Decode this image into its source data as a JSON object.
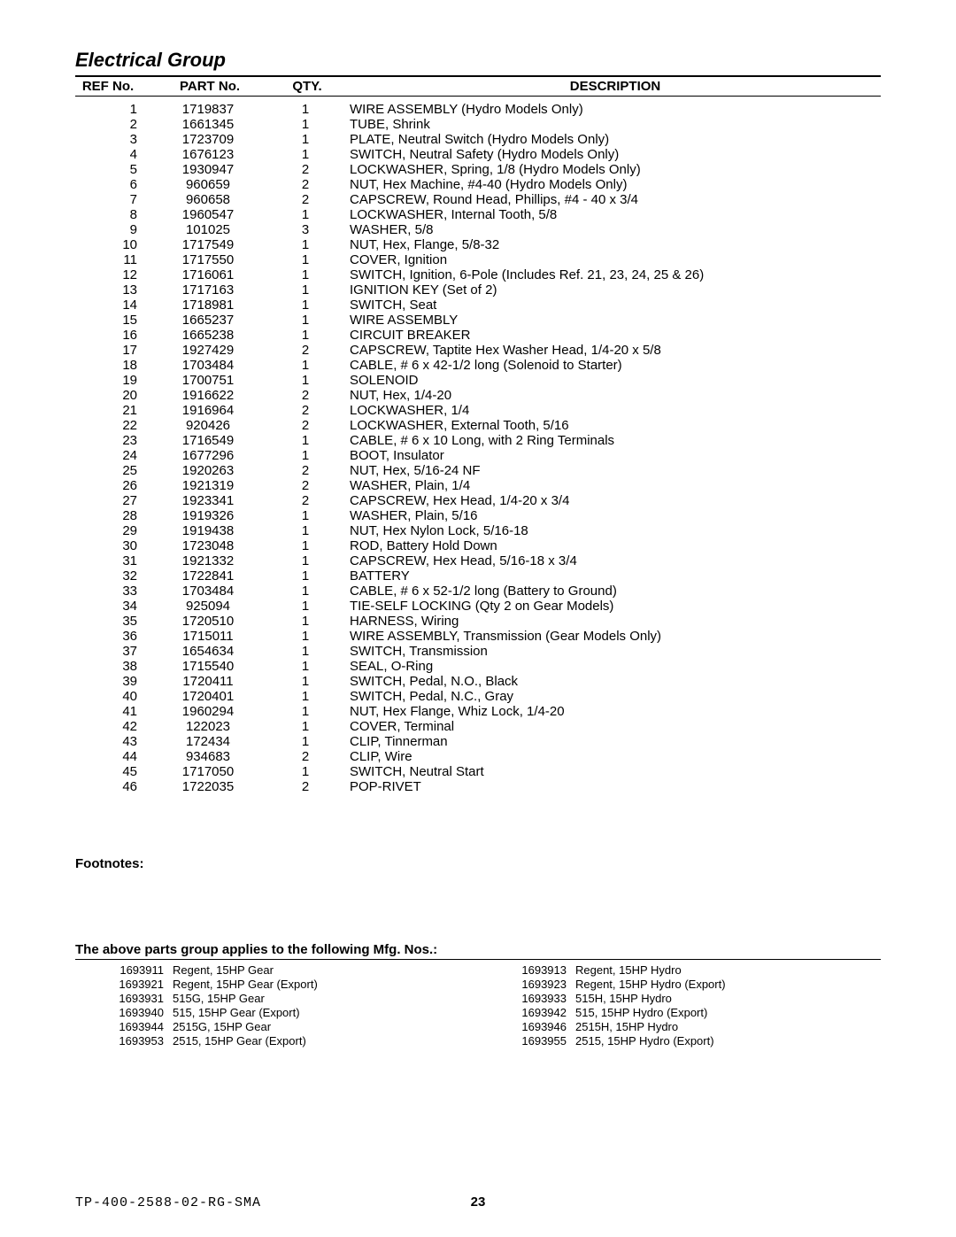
{
  "title": "Electrical Group",
  "headers": {
    "ref": "REF No.",
    "part": "PART No.",
    "qty": "QTY.",
    "desc": "DESCRIPTION"
  },
  "rows": [
    {
      "ref": "1",
      "part": "1719837",
      "qty": "1",
      "desc": "WIRE ASSEMBLY (Hydro Models Only)"
    },
    {
      "ref": "2",
      "part": "1661345",
      "qty": "1",
      "desc": "TUBE, Shrink"
    },
    {
      "ref": "3",
      "part": "1723709",
      "qty": "1",
      "desc": "PLATE, Neutral Switch   (Hydro Models Only)"
    },
    {
      "ref": "4",
      "part": "1676123",
      "qty": "1",
      "desc": "SWITCH, Neutral Safety (Hydro Models Only)"
    },
    {
      "ref": "5",
      "part": "1930947",
      "qty": "2",
      "desc": "LOCKWASHER, Spring, 1/8  (Hydro Models Only)"
    },
    {
      "ref": "6",
      "part": "960659",
      "qty": "2",
      "desc": "NUT, Hex Machine, #4-40 (Hydro Models Only)"
    },
    {
      "ref": "7",
      "part": "960658",
      "qty": "2",
      "desc": "CAPSCREW, Round Head, Phillips, #4 - 40 x 3/4"
    },
    {
      "ref": "8",
      "part": "1960547",
      "qty": "1",
      "desc": "LOCKWASHER, Internal Tooth, 5/8"
    },
    {
      "ref": "9",
      "part": "101025",
      "qty": "3",
      "desc": "WASHER, 5/8"
    },
    {
      "ref": "10",
      "part": "1717549",
      "qty": "1",
      "desc": "NUT, Hex, Flange, 5/8-32"
    },
    {
      "ref": "11",
      "part": "1717550",
      "qty": "1",
      "desc": "COVER, Ignition"
    },
    {
      "ref": "12",
      "part": "1716061",
      "qty": "1",
      "desc": "SWITCH, Ignition, 6-Pole (Includes Ref. 21, 23, 24, 25 & 26)"
    },
    {
      "ref": "13",
      "part": "1717163",
      "qty": "1",
      "desc": "IGNITION KEY (Set of 2)"
    },
    {
      "ref": "14",
      "part": "1718981",
      "qty": "1",
      "desc": "SWITCH, Seat"
    },
    {
      "ref": "15",
      "part": "1665237",
      "qty": "1",
      "desc": "WIRE ASSEMBLY"
    },
    {
      "ref": "16",
      "part": "1665238",
      "qty": "1",
      "desc": "CIRCUIT BREAKER"
    },
    {
      "ref": "17",
      "part": "1927429",
      "qty": "2",
      "desc": "CAPSCREW, Taptite Hex Washer Head, 1/4-20 x 5/8"
    },
    {
      "ref": "18",
      "part": "1703484",
      "qty": "1",
      "desc": "CABLE, # 6 x 42-1/2 long (Solenoid to Starter)"
    },
    {
      "ref": "19",
      "part": "1700751",
      "qty": "1",
      "desc": "SOLENOID"
    },
    {
      "ref": "20",
      "part": "1916622",
      "qty": "2",
      "desc": "NUT, Hex, 1/4-20"
    },
    {
      "ref": "21",
      "part": "1916964",
      "qty": "2",
      "desc": "LOCKWASHER, 1/4"
    },
    {
      "ref": "22",
      "part": "920426",
      "qty": "2",
      "desc": "LOCKWASHER, External Tooth, 5/16"
    },
    {
      "ref": "23",
      "part": "1716549",
      "qty": "1",
      "desc": "CABLE, # 6 x 10 Long, with 2 Ring Terminals"
    },
    {
      "ref": "24",
      "part": "1677296",
      "qty": "1",
      "desc": "BOOT, Insulator"
    },
    {
      "ref": "25",
      "part": "1920263",
      "qty": "2",
      "desc": "NUT, Hex, 5/16-24 NF"
    },
    {
      "ref": "26",
      "part": "1921319",
      "qty": "2",
      "desc": "WASHER, Plain, 1/4"
    },
    {
      "ref": "27",
      "part": "1923341",
      "qty": "2",
      "desc": "CAPSCREW, Hex Head, 1/4-20 x 3/4"
    },
    {
      "ref": "28",
      "part": "1919326",
      "qty": "1",
      "desc": "WASHER, Plain, 5/16"
    },
    {
      "ref": "29",
      "part": "1919438",
      "qty": "1",
      "desc": "NUT, Hex Nylon Lock, 5/16-18"
    },
    {
      "ref": "30",
      "part": "1723048",
      "qty": "1",
      "desc": "ROD, Battery Hold Down"
    },
    {
      "ref": "31",
      "part": "1921332",
      "qty": "1",
      "desc": "CAPSCREW, Hex Head, 5/16-18 x 3/4"
    },
    {
      "ref": "32",
      "part": "1722841",
      "qty": "1",
      "desc": "BATTERY"
    },
    {
      "ref": "33",
      "part": "1703484",
      "qty": "1",
      "desc": "CABLE, # 6 x 52-1/2 long (Battery to Ground)"
    },
    {
      "ref": "34",
      "part": "925094",
      "qty": "1",
      "desc": "TIE-SELF LOCKING (Qty 2 on Gear Models)"
    },
    {
      "ref": "35",
      "part": "1720510",
      "qty": "1",
      "desc": "HARNESS, Wiring"
    },
    {
      "ref": "36",
      "part": "1715011",
      "qty": "1",
      "desc": "WIRE ASSEMBLY, Transmission (Gear Models Only)"
    },
    {
      "ref": "37",
      "part": "1654634",
      "qty": "1",
      "desc": "SWITCH, Transmission"
    },
    {
      "ref": "38",
      "part": "1715540",
      "qty": "1",
      "desc": "SEAL, O-Ring"
    },
    {
      "ref": "39",
      "part": "1720411",
      "qty": "1",
      "desc": "SWITCH, Pedal, N.O., Black"
    },
    {
      "ref": "40",
      "part": "1720401",
      "qty": "1",
      "desc": "SWITCH, Pedal, N.C., Gray"
    },
    {
      "ref": "41",
      "part": "1960294",
      "qty": "1",
      "desc": "NUT, Hex Flange, Whiz Lock, 1/4-20"
    },
    {
      "ref": "42",
      "part": "122023",
      "qty": "1",
      "desc": "COVER, Terminal"
    },
    {
      "ref": "43",
      "part": "172434",
      "qty": "1",
      "desc": "CLIP, Tinnerman"
    },
    {
      "ref": "44",
      "part": "934683",
      "qty": "2",
      "desc": "CLIP, Wire"
    },
    {
      "ref": "45",
      "part": "1717050",
      "qty": "1",
      "desc": "SWITCH, Neutral Start"
    },
    {
      "ref": "46",
      "part": "1722035",
      "qty": "2",
      "desc": "POP-RIVET"
    }
  ],
  "footnotes_label": "Footnotes:",
  "applies_label": "The above parts group applies to the following Mfg. Nos.:",
  "mfg_left": [
    {
      "no": "1693911",
      "desc": "Regent, 15HP Gear"
    },
    {
      "no": "1693921",
      "desc": "Regent, 15HP Gear (Export)"
    },
    {
      "no": "1693931",
      "desc": "515G, 15HP Gear"
    },
    {
      "no": "1693940",
      "desc": "515, 15HP Gear (Export)"
    },
    {
      "no": "1693944",
      "desc": "2515G, 15HP Gear"
    },
    {
      "no": "1693953",
      "desc": "2515, 15HP Gear (Export)"
    }
  ],
  "mfg_right": [
    {
      "no": "1693913",
      "desc": "Regent, 15HP Hydro"
    },
    {
      "no": "1693923",
      "desc": "Regent, 15HP Hydro (Export)"
    },
    {
      "no": "1693933",
      "desc": "515H, 15HP Hydro"
    },
    {
      "no": "1693942",
      "desc": "515, 15HP Hydro (Export)"
    },
    {
      "no": "1693946",
      "desc": "2515H, 15HP Hydro"
    },
    {
      "no": "1693955",
      "desc": "2515, 15HP Hydro (Export)"
    }
  ],
  "footer": {
    "docnum": "TP-400-2588-02-RG-SMA",
    "pagenum": "23"
  }
}
